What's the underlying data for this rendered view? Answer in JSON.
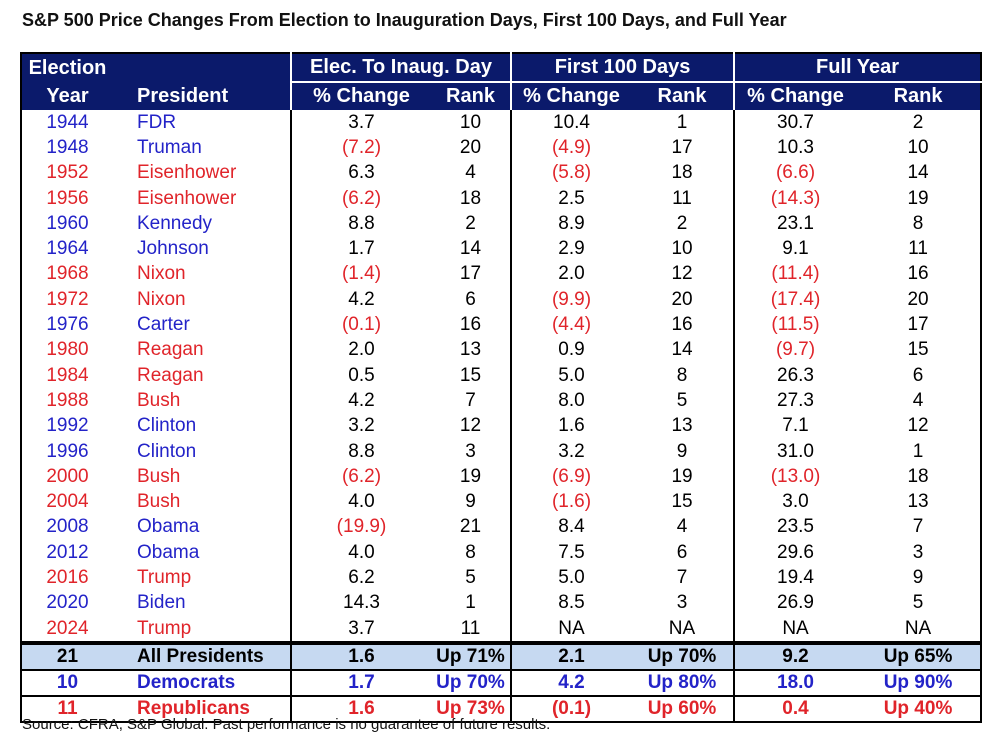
{
  "title": "S&P 500 Price Changes From Election to Inauguration Days, First 100 Days, and Full Year",
  "table": {
    "header": {
      "top": "Election",
      "groups": [
        "Elec. To Inaug. Day",
        "First 100 Days",
        "Full Year"
      ],
      "sub": [
        "Year",
        "President",
        "% Change",
        "Rank",
        "% Change",
        "Rank",
        "% Change",
        "Rank"
      ],
      "background": "#0b1a6b",
      "color": "#ffffff"
    },
    "negative_color": "#e0242a",
    "rows": [
      {
        "cells": [
          "1944",
          "FDR",
          "3.7",
          "10",
          "10.4",
          "1",
          "30.7",
          "2"
        ],
        "color": "#2323c8"
      },
      {
        "cells": [
          "1948",
          "Truman",
          "(7.2)",
          "20",
          "(4.9)",
          "17",
          "10.3",
          "10"
        ],
        "color": "#2323c8"
      },
      {
        "cells": [
          "1952",
          "Eisenhower",
          "6.3",
          "4",
          "(5.8)",
          "18",
          "(6.6)",
          "14"
        ],
        "color": "#e0242a"
      },
      {
        "cells": [
          "1956",
          "Eisenhower",
          "(6.2)",
          "18",
          "2.5",
          "11",
          "(14.3)",
          "19"
        ],
        "color": "#e0242a"
      },
      {
        "cells": [
          "1960",
          "Kennedy",
          "8.8",
          "2",
          "8.9",
          "2",
          "23.1",
          "8"
        ],
        "color": "#2323c8"
      },
      {
        "cells": [
          "1964",
          "Johnson",
          "1.7",
          "14",
          "2.9",
          "10",
          "9.1",
          "11"
        ],
        "color": "#2323c8"
      },
      {
        "cells": [
          "1968",
          "Nixon",
          "(1.4)",
          "17",
          "2.0",
          "12",
          "(11.4)",
          "16"
        ],
        "color": "#e0242a"
      },
      {
        "cells": [
          "1972",
          "Nixon",
          "4.2",
          "6",
          "(9.9)",
          "20",
          "(17.4)",
          "20"
        ],
        "color": "#e0242a"
      },
      {
        "cells": [
          "1976",
          "Carter",
          "(0.1)",
          "16",
          "(4.4)",
          "16",
          "(11.5)",
          "17"
        ],
        "color": "#2323c8"
      },
      {
        "cells": [
          "1980",
          "Reagan",
          "2.0",
          "13",
          "0.9",
          "14",
          "(9.7)",
          "15"
        ],
        "color": "#e0242a"
      },
      {
        "cells": [
          "1984",
          "Reagan",
          "0.5",
          "15",
          "5.0",
          "8",
          "26.3",
          "6"
        ],
        "color": "#e0242a"
      },
      {
        "cells": [
          "1988",
          "Bush",
          "4.2",
          "7",
          "8.0",
          "5",
          "27.3",
          "4"
        ],
        "color": "#e0242a"
      },
      {
        "cells": [
          "1992",
          "Clinton",
          "3.2",
          "12",
          "1.6",
          "13",
          "7.1",
          "12"
        ],
        "color": "#2323c8"
      },
      {
        "cells": [
          "1996",
          "Clinton",
          "8.8",
          "3",
          "3.2",
          "9",
          "31.0",
          "1"
        ],
        "color": "#2323c8"
      },
      {
        "cells": [
          "2000",
          "Bush",
          "(6.2)",
          "19",
          "(6.9)",
          "19",
          "(13.0)",
          "18"
        ],
        "color": "#e0242a"
      },
      {
        "cells": [
          "2004",
          "Bush",
          "4.0",
          "9",
          "(1.6)",
          "15",
          "3.0",
          "13"
        ],
        "color": "#e0242a"
      },
      {
        "cells": [
          "2008",
          "Obama",
          "(19.9)",
          "21",
          "8.4",
          "4",
          "23.5",
          "7"
        ],
        "color": "#2323c8"
      },
      {
        "cells": [
          "2012",
          "Obama",
          "4.0",
          "8",
          "7.5",
          "6",
          "29.6",
          "3"
        ],
        "color": "#2323c8"
      },
      {
        "cells": [
          "2016",
          "Trump",
          "6.2",
          "5",
          "5.0",
          "7",
          "19.4",
          "9"
        ],
        "color": "#e0242a"
      },
      {
        "cells": [
          "2020",
          "Biden",
          "14.3",
          "1",
          "8.5",
          "3",
          "26.9",
          "5"
        ],
        "color": "#2323c8"
      },
      {
        "cells": [
          "2024",
          "Trump",
          "3.7",
          "11",
          "NA",
          "NA",
          "NA",
          "NA"
        ],
        "color": "#e0242a"
      }
    ],
    "summary": [
      {
        "cells": [
          "21",
          "All Presidents",
          "1.6",
          "Up 71%",
          "2.1",
          "Up 70%",
          "9.2",
          "Up 65%"
        ],
        "color": "#000000",
        "background": "#c6d9f1"
      },
      {
        "cells": [
          "10",
          "Democrats",
          "1.7",
          "Up 70%",
          "4.2",
          "Up 80%",
          "18.0",
          "Up 90%"
        ],
        "color": "#2323c8",
        "background": "#ffffff"
      },
      {
        "cells": [
          "11",
          "Republicans",
          "1.6",
          "Up 73%",
          "(0.1)",
          "Up 60%",
          "0.4",
          "Up 40%"
        ],
        "color": "#e0242a",
        "background": "#ffffff"
      }
    ]
  },
  "source": "Source: CFRA, S&P Global. Past performance is no guarantee of future results."
}
